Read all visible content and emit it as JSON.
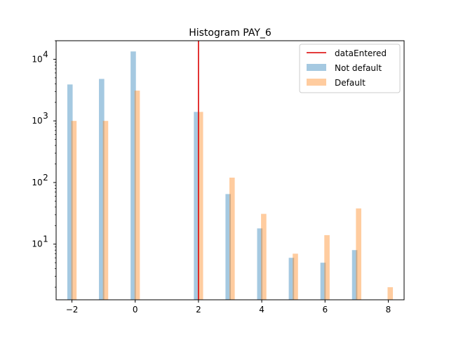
{
  "chart_data": {
    "type": "bar",
    "title": "Histogram PAY_6",
    "xlabel": "",
    "ylabel": "",
    "yscale": "log",
    "xlim": [
      -2.5,
      8.5
    ],
    "ylim": [
      1.25,
      20000
    ],
    "x_ticks": [
      -2,
      0,
      2,
      4,
      6,
      8
    ],
    "x_tick_labels": [
      "−2",
      "0",
      "2",
      "4",
      "6",
      "8"
    ],
    "y_ticks": [
      10,
      100,
      1000,
      10000
    ],
    "y_tick_base": "10",
    "y_tick_exponents": [
      "1",
      "2",
      "3",
      "4"
    ],
    "grid": false,
    "legend_position": "top-right",
    "vline": {
      "name": "dataEntered",
      "x": 2,
      "color": "#e01f1f"
    },
    "series": [
      {
        "name": "Not default",
        "color": "#1f77b4",
        "opacity": 0.4,
        "x": [
          -2,
          -1,
          0,
          2,
          3,
          4,
          5,
          6,
          7
        ],
        "values": [
          3900,
          4800,
          13400,
          1400,
          65,
          18,
          6,
          5,
          8
        ]
      },
      {
        "name": "Default",
        "color": "#ff7f0e",
        "opacity": 0.4,
        "x": [
          -2,
          -1,
          0,
          2,
          3,
          4,
          5,
          6,
          7,
          8
        ],
        "values": [
          1000,
          1000,
          3100,
          1400,
          120,
          31,
          7,
          14,
          38,
          2
        ]
      }
    ]
  }
}
